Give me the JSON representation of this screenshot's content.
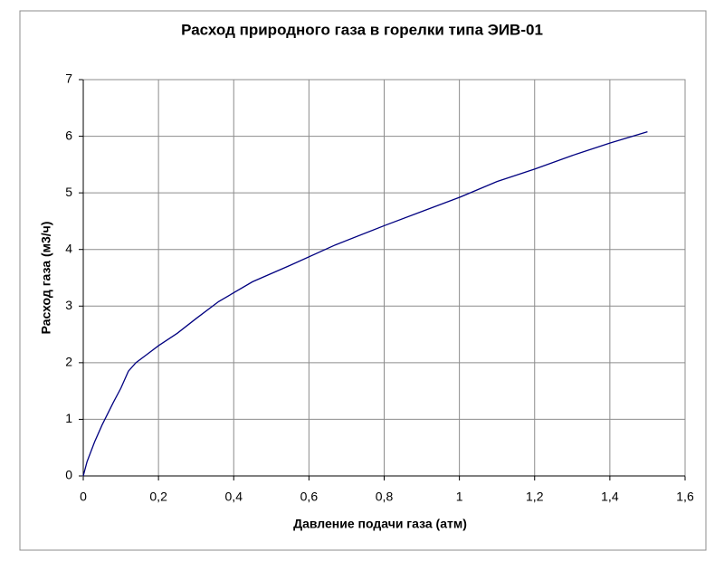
{
  "chart_data": {
    "type": "line",
    "title": "Расход природного газа в горелки типа ЭИВ-01",
    "x_label": "Давление подачи газа (атм)",
    "y_label": "Расход газа (м3/ч)",
    "x": [
      0,
      0.01,
      0.03,
      0.05,
      0.08,
      0.1,
      0.12,
      0.14,
      0.17,
      0.2,
      0.25,
      0.3,
      0.36,
      0.45,
      0.55,
      0.67,
      0.8,
      0.9,
      1.0,
      1.1,
      1.2,
      1.3,
      1.4,
      1.5
    ],
    "values": [
      0,
      0.25,
      0.6,
      0.9,
      1.3,
      1.55,
      1.85,
      2.0,
      2.15,
      2.3,
      2.52,
      2.78,
      3.08,
      3.43,
      3.72,
      4.08,
      4.42,
      4.67,
      4.92,
      5.2,
      5.42,
      5.66,
      5.88,
      6.08
    ],
    "color": "#000080",
    "xlim": [
      0,
      1.6
    ],
    "xticks": [
      0,
      {
        "value": 0.2,
        "label": "0,2"
      },
      {
        "value": 0.4,
        "label": "0,4"
      },
      {
        "value": 0.6,
        "label": "0,6"
      },
      {
        "value": 0.8,
        "label": "0,8"
      },
      1,
      {
        "value": 1.2,
        "label": "1,2"
      },
      {
        "value": 1.4,
        "label": "1,4"
      },
      {
        "value": 1.6,
        "label": "1,6"
      }
    ],
    "ylim": [
      0,
      7
    ],
    "yticks": [
      0,
      1,
      2,
      3,
      4,
      5,
      6,
      7
    ],
    "grid": true
  }
}
